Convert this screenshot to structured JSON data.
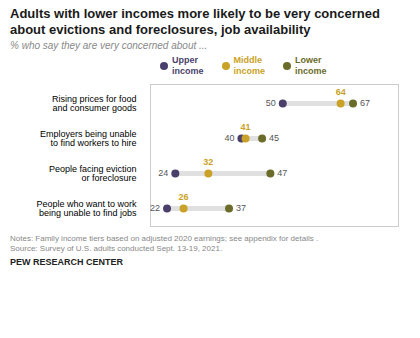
{
  "chart_data": {
    "type": "dot",
    "title": "Adults with lower incomes more likely to be very concerned about evictions and foreclosures, job availability",
    "subtitle": "% who say they are very concerned about ...",
    "categories": [
      "Rising prices for food\nand consumer goods",
      "Employers being unable\nto find workers to hire",
      "People facing eviction\nor foreclosure",
      "People who want to work\nbeing unable to find jobs"
    ],
    "series": [
      {
        "name": "Upper\nincome",
        "color": "#4a3f6b",
        "values": [
          50,
          40,
          24,
          22
        ]
      },
      {
        "name": "Middle\nincome",
        "color": "#c9a227",
        "values": [
          64,
          41,
          32,
          26
        ]
      },
      {
        "name": "Lower\nincome",
        "color": "#6b6b2a",
        "values": [
          67,
          45,
          47,
          37
        ]
      }
    ],
    "color": "#e0e0e0",
    "orientation": "horizontal",
    "xlim": [
      18,
      78
    ],
    "xticks": [],
    "tick_labels": "y",
    "data_labels": true,
    "legend": "top",
    "grid": false,
    "notes": "Notes: Family income tiers based on adjusted 2020 earnings; see appendix for details .",
    "source": "Source: Survey of U.S. adults conducted Sept. 13-19, 2021.",
    "footer": "PEW RESEARCH CENTER"
  }
}
